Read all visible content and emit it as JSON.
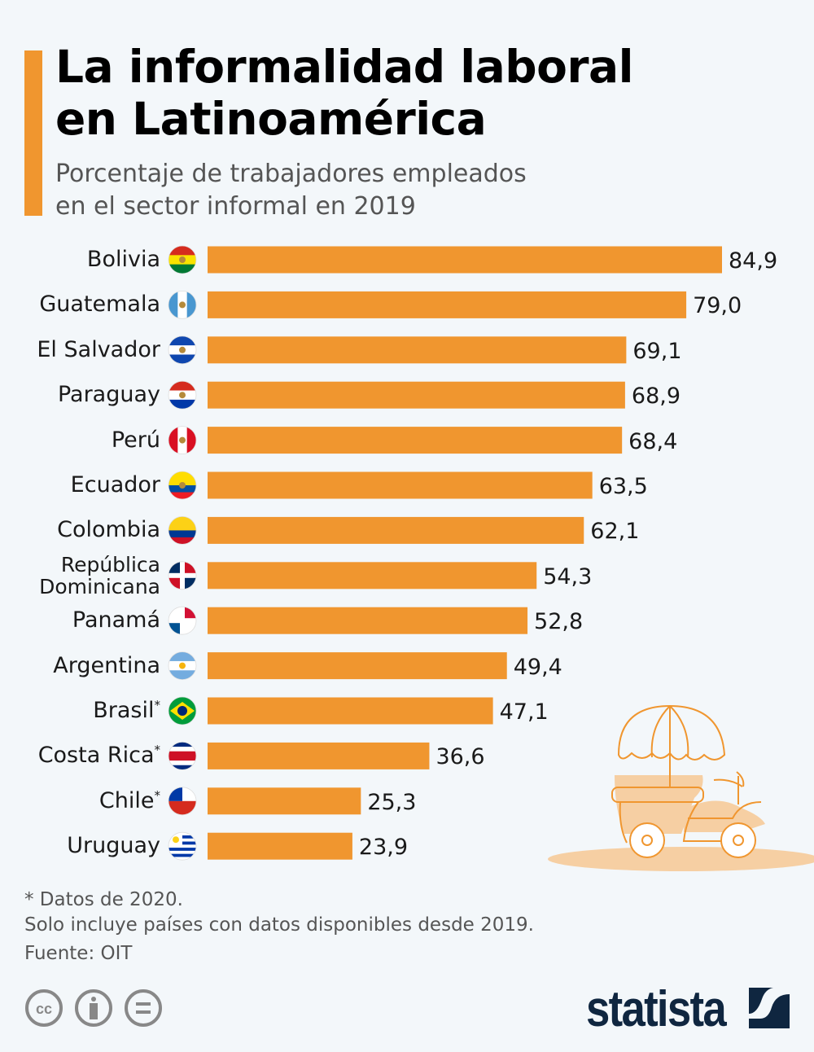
{
  "header": {
    "title": "La informalidad laboral\nen Latinoamérica",
    "subtitle": "Porcentaje de trabajadores empleados\nen el sector informal en 2019"
  },
  "chart_data": {
    "type": "bar",
    "orientation": "horizontal",
    "title": "La informalidad laboral en Latinoamérica",
    "subtitle": "Porcentaje de trabajadores empleados en el sector informal en 2019",
    "xlim": [
      0,
      100
    ],
    "grid": false,
    "bar_color": "#f0962f",
    "categories": [
      "Bolivia",
      "Guatemala",
      "El Salvador",
      "Paraguay",
      "Perú",
      "Ecuador",
      "Colombia",
      "República\nDominicana",
      "Panamá",
      "Argentina",
      "Brasil",
      "Costa Rica",
      "Chile",
      "Uruguay"
    ],
    "asterisk": [
      "",
      "",
      "",
      "",
      "",
      "",
      "",
      "",
      "",
      "",
      "*",
      "*",
      "*",
      ""
    ],
    "values": [
      84.9,
      79.0,
      69.1,
      68.9,
      68.4,
      63.5,
      62.1,
      54.3,
      52.8,
      49.4,
      47.1,
      36.6,
      25.3,
      23.9
    ],
    "value_labels": [
      "84,9",
      "79,0",
      "69,1",
      "68,9",
      "68,4",
      "63,5",
      "62,1",
      "54,3",
      "52,8",
      "49,4",
      "47,1",
      "36,6",
      "25,3",
      "23,9"
    ],
    "flags": [
      {
        "icon": "flag-bolivia-icon",
        "dir": "h",
        "colors": [
          "#d52b1e",
          "#f9e300",
          "#007934"
        ]
      },
      {
        "icon": "flag-guatemala-icon",
        "dir": "v",
        "colors": [
          "#4997d0",
          "#ffffff",
          "#4997d0"
        ]
      },
      {
        "icon": "flag-el-salvador-icon",
        "dir": "h",
        "colors": [
          "#0f47af",
          "#ffffff",
          "#0f47af"
        ]
      },
      {
        "icon": "flag-paraguay-icon",
        "dir": "h",
        "colors": [
          "#d52b1e",
          "#ffffff",
          "#0038a8"
        ]
      },
      {
        "icon": "flag-peru-icon",
        "dir": "v",
        "colors": [
          "#d91023",
          "#ffffff",
          "#d91023"
        ]
      },
      {
        "icon": "flag-ecuador-icon",
        "dir": "h",
        "colors": [
          "#ffdd00",
          "#ffdd00",
          "#034ea2",
          "#ed1c24"
        ]
      },
      {
        "icon": "flag-colombia-icon",
        "dir": "h",
        "colors": [
          "#fcd116",
          "#fcd116",
          "#003893",
          "#ce1126"
        ]
      },
      {
        "icon": "flag-dominican-republic-icon",
        "dir": "q",
        "colors": [
          "#002d62",
          "#ce1126",
          "#ce1126",
          "#002d62"
        ]
      },
      {
        "icon": "flag-panama-icon",
        "dir": "q",
        "colors": [
          "#ffffff",
          "#d21034",
          "#005293",
          "#ffffff"
        ]
      },
      {
        "icon": "flag-argentina-icon",
        "dir": "h",
        "colors": [
          "#74acdf",
          "#ffffff",
          "#74acdf"
        ]
      },
      {
        "icon": "flag-brazil-icon",
        "dir": "h",
        "colors": [
          "#009c3b",
          "#009c3b",
          "#009c3b"
        ]
      },
      {
        "icon": "flag-costa-rica-icon",
        "dir": "h",
        "colors": [
          "#002b7f",
          "#ffffff",
          "#ce1126",
          "#ce1126",
          "#ffffff",
          "#002b7f"
        ]
      },
      {
        "icon": "flag-chile-icon",
        "dir": "h",
        "colors": [
          "#ffffff",
          "#d52b1e"
        ]
      },
      {
        "icon": "flag-uruguay-icon",
        "dir": "h",
        "colors": [
          "#ffffff",
          "#0038a8",
          "#ffffff",
          "#0038a8",
          "#ffffff",
          "#0038a8",
          "#ffffff",
          "#0038a8",
          "#ffffff"
        ]
      }
    ]
  },
  "footer": {
    "note1": "* Datos de 2020.",
    "note2": "Solo incluye países con datos disponibles desde 2019.",
    "source": "Fuente: OIT",
    "license_icons": [
      "cc-icon",
      "attribution-icon",
      "no-derivatives-icon"
    ],
    "brand": "statista"
  },
  "colors": {
    "accent": "#f0962f",
    "background": "#f3f7fa",
    "brand": "#0f2640"
  }
}
